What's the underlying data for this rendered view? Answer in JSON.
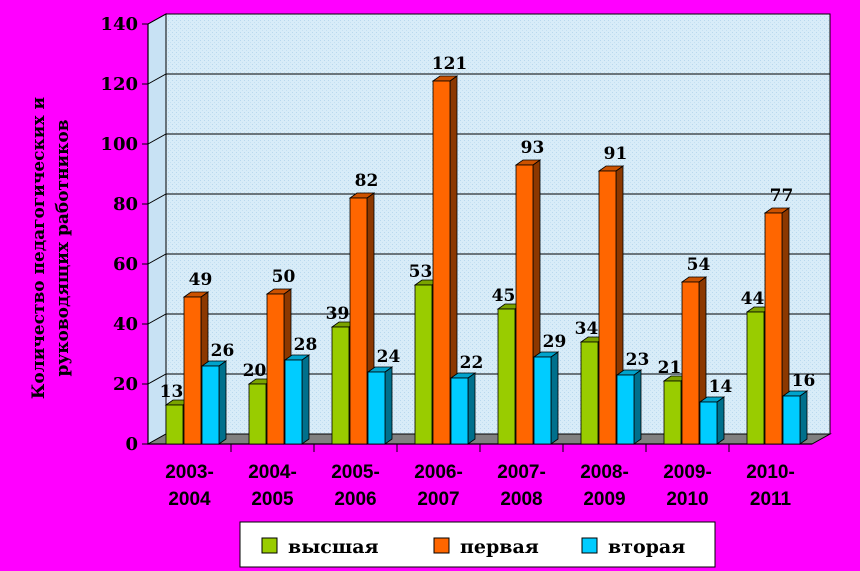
{
  "chart_data": {
    "type": "bar",
    "ylabel": "Количество педагогических и руководящих работников",
    "ylabel_lines": [
      "Количество педагогических и",
      "руководящих работников"
    ],
    "ylim": [
      0,
      140
    ],
    "yticks": [
      0,
      20,
      40,
      60,
      80,
      100,
      120,
      140
    ],
    "grid": true,
    "legend_position": "bottom",
    "categories": [
      [
        "2003-",
        "2004"
      ],
      [
        "2004-",
        "2005"
      ],
      [
        "2005-",
        "2006"
      ],
      [
        "2006-",
        "2007"
      ],
      [
        "2007-",
        "2008"
      ],
      [
        "2008-",
        "2009"
      ],
      [
        "2009-",
        "2010"
      ],
      [
        "2010-",
        "2011"
      ]
    ],
    "series": [
      {
        "name": "высшая",
        "color": "#99cc00",
        "values": [
          13,
          20,
          39,
          53,
          45,
          34,
          21,
          44
        ]
      },
      {
        "name": "первая",
        "color": "#ff6600",
        "values": [
          49,
          50,
          82,
          121,
          93,
          91,
          54,
          77
        ]
      },
      {
        "name": "вторая",
        "color": "#00ccff",
        "values": [
          26,
          28,
          24,
          22,
          29,
          23,
          14,
          16
        ]
      }
    ]
  },
  "colors": {
    "page_background": "#ff00ff",
    "plot_background": "#dff0fa",
    "floor": "#808080"
  }
}
